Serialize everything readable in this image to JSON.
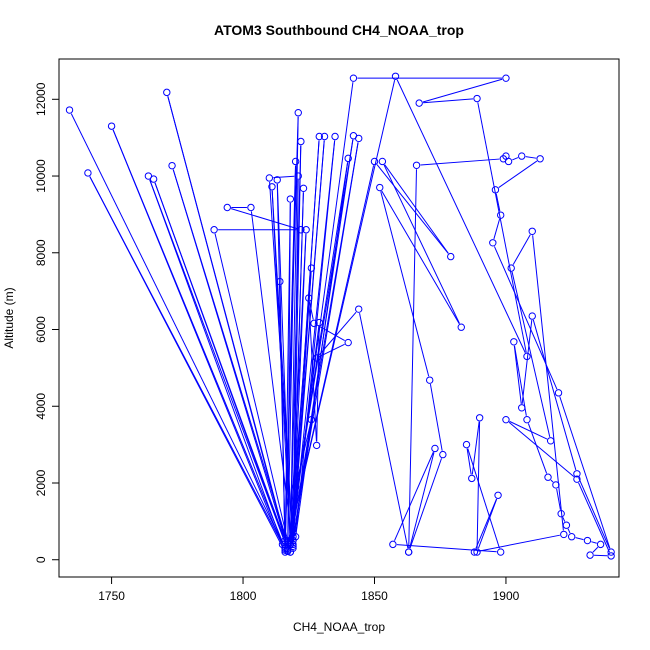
{
  "chart_data": {
    "type": "line",
    "title": "ATOM3 Southbound CH4_NOAA_trop",
    "xlabel": "CH4_NOAA_trop",
    "ylabel": "Altitude (m)",
    "xlim": [
      1730,
      1943
    ],
    "ylim": [
      -450,
      13050
    ],
    "xticks": [
      1750,
      1800,
      1850,
      1900
    ],
    "yticks": [
      0,
      2000,
      4000,
      6000,
      8000,
      10000,
      12000
    ],
    "series": [
      {
        "name": "CH4_NOAA_trop",
        "color": "#0000ff",
        "marker": "open-circle",
        "points": [
          [
            1734,
            11720
          ],
          [
            1816,
            300
          ],
          [
            1750,
            11300
          ],
          [
            1816,
            200
          ],
          [
            1741,
            10080
          ],
          [
            1815,
            400
          ],
          [
            1764,
            10000
          ],
          [
            1817,
            250
          ],
          [
            1766,
            9920
          ],
          [
            1816,
            500
          ],
          [
            1771,
            12180
          ],
          [
            1817,
            300
          ],
          [
            1773,
            10270
          ],
          [
            1818,
            200
          ],
          [
            1789,
            8600
          ],
          [
            1822,
            8600
          ],
          [
            1794,
            9180
          ],
          [
            1803,
            9180
          ],
          [
            1819,
            300
          ],
          [
            1810,
            9950
          ],
          [
            1821,
            10000
          ],
          [
            1819,
            350
          ],
          [
            1811,
            9720
          ],
          [
            1818,
            400
          ],
          [
            1813,
            9900
          ],
          [
            1816,
            250
          ],
          [
            1814,
            7250
          ],
          [
            1816,
            300
          ],
          [
            1818,
            9400
          ],
          [
            1817,
            220
          ],
          [
            1820,
            10380
          ],
          [
            1816,
            300
          ],
          [
            1821,
            11650
          ],
          [
            1818,
            400
          ],
          [
            1822,
            10900
          ],
          [
            1819,
            500
          ],
          [
            1823,
            9680
          ],
          [
            1819,
            700
          ],
          [
            1824,
            8600
          ],
          [
            1818,
            500
          ],
          [
            1826,
            7600
          ],
          [
            1819,
            400
          ],
          [
            1826,
            3650
          ],
          [
            1820,
            1900
          ],
          [
            1829,
            11030
          ],
          [
            1819,
            800
          ],
          [
            1831,
            11030
          ],
          [
            1819,
            600
          ],
          [
            1835,
            11030
          ],
          [
            1820,
            600
          ],
          [
            1840,
            10460
          ],
          [
            1817,
            300
          ],
          [
            1842,
            11050
          ],
          [
            1819,
            500
          ],
          [
            1844,
            10980
          ],
          [
            1818,
            400
          ],
          [
            1842,
            12550
          ],
          [
            1900,
            12550
          ],
          [
            1867,
            11900
          ],
          [
            1889,
            12020
          ],
          [
            1908,
            5300
          ],
          [
            1858,
            12600
          ],
          [
            1817,
            400
          ],
          [
            1850,
            10380
          ],
          [
            1879,
            7900
          ],
          [
            1853,
            10380
          ],
          [
            1883,
            6060
          ],
          [
            1852,
            9700
          ],
          [
            1871,
            4680
          ],
          [
            1876,
            2740
          ],
          [
            1863,
            200
          ],
          [
            1866,
            10280
          ],
          [
            1899,
            10450
          ],
          [
            1900,
            10520
          ],
          [
            1901,
            10380
          ],
          [
            1906,
            10520
          ],
          [
            1913,
            10450
          ],
          [
            1896,
            9640
          ],
          [
            1898,
            8980
          ],
          [
            1895,
            8260
          ],
          [
            1920,
            4350
          ],
          [
            1940,
            200
          ],
          [
            1927,
            2240
          ],
          [
            1910,
            6350
          ],
          [
            1906,
            3960
          ],
          [
            1903,
            5680
          ],
          [
            1908,
            3650
          ],
          [
            1916,
            2150
          ],
          [
            1919,
            1950
          ],
          [
            1921,
            1200
          ],
          [
            1923,
            900
          ],
          [
            1925,
            600
          ],
          [
            1931,
            500
          ],
          [
            1936,
            400
          ],
          [
            1932,
            120
          ],
          [
            1940,
            100
          ],
          [
            1927,
            2100
          ],
          [
            1900,
            3650
          ],
          [
            1917,
            3100
          ],
          [
            1902,
            7600
          ],
          [
            1910,
            8560
          ],
          [
            1922,
            660
          ],
          [
            1888,
            200
          ],
          [
            1897,
            1680
          ],
          [
            1889,
            200
          ],
          [
            1890,
            3700
          ],
          [
            1887,
            2120
          ],
          [
            1885,
            3000
          ],
          [
            1898,
            200
          ],
          [
            1857,
            400
          ],
          [
            1873,
            2900
          ],
          [
            1863,
            200
          ],
          [
            1844,
            6530
          ],
          [
            1828,
            5260
          ],
          [
            1840,
            5660
          ],
          [
            1827,
            6160
          ],
          [
            1825,
            6820
          ],
          [
            1828,
            2980
          ],
          [
            1829,
            6180
          ],
          [
            1818,
            200
          ]
        ]
      }
    ]
  }
}
